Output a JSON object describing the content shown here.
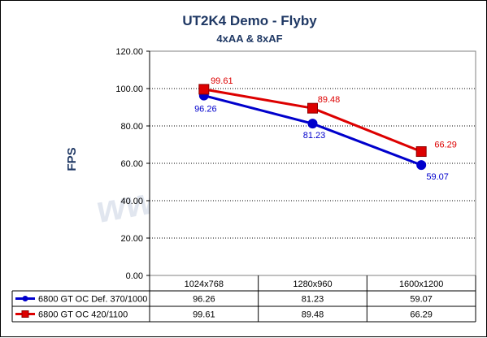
{
  "chart_data": {
    "type": "line",
    "title": "UT2K4 Demo - Flyby",
    "subtitle": "4xAA & 8xAF",
    "ylabel": "FPS",
    "xlabel": "",
    "categories": [
      "1024x768",
      "1280x960",
      "1600x1200"
    ],
    "ylim": [
      0,
      120
    ],
    "yticks": [
      "0.00",
      "20.00",
      "40.00",
      "60.00",
      "80.00",
      "100.00",
      "120.00"
    ],
    "grid": true,
    "legend": "table-below",
    "series": [
      {
        "name": "6800 GT OC Def. 370/1000",
        "values": [
          96.26,
          81.23,
          59.07
        ],
        "labels": [
          "96.26",
          "81.23",
          "59.07"
        ],
        "color": "#0000cc",
        "marker": "circle"
      },
      {
        "name": "6800 GT OC 420/1100",
        "values": [
          99.61,
          89.48,
          66.29
        ],
        "labels": [
          "99.61",
          "89.48",
          "66.29"
        ],
        "color": "#dd0000",
        "marker": "square"
      }
    ],
    "watermark": "www.Bjorn3D.com"
  }
}
